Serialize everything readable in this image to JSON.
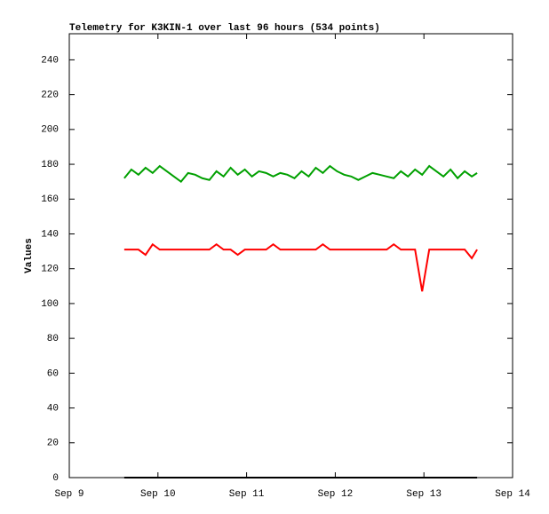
{
  "chart_data": {
    "type": "line",
    "title": "Telemetry for K3KIN-1 over last 96 hours (534 points)",
    "y_label": "Values",
    "x": [
      9.62,
      9.7,
      9.78,
      9.86,
      9.94,
      10.02,
      10.1,
      10.18,
      10.26,
      10.34,
      10.42,
      10.5,
      10.58,
      10.66,
      10.74,
      10.82,
      10.9,
      10.98,
      11.06,
      11.14,
      11.22,
      11.3,
      11.38,
      11.46,
      11.54,
      11.62,
      11.7,
      11.78,
      11.86,
      11.94,
      12.02,
      12.1,
      12.18,
      12.26,
      12.34,
      12.42,
      12.5,
      12.58,
      12.66,
      12.74,
      12.82,
      12.9,
      12.98,
      13.06,
      13.14,
      13.22,
      13.3,
      13.38,
      13.46,
      13.54,
      13.6
    ],
    "series": [
      {
        "color": "#00a000",
        "values": [
          172,
          177,
          174,
          178,
          175,
          179,
          176,
          173,
          170,
          175,
          174,
          172,
          171,
          176,
          173,
          178,
          174,
          177,
          173,
          176,
          175,
          173,
          175,
          174,
          172,
          176,
          173,
          178,
          175,
          179,
          176,
          174,
          173,
          171,
          173,
          175,
          174,
          173,
          172,
          176,
          173,
          177,
          174,
          179,
          176,
          173,
          177,
          172,
          176,
          173,
          175
        ]
      },
      {
        "color": "#ff0000",
        "values": [
          131,
          131,
          131,
          128,
          134,
          131,
          131,
          131,
          131,
          131,
          131,
          131,
          131,
          134,
          131,
          131,
          128,
          131,
          131,
          131,
          131,
          134,
          131,
          131,
          131,
          131,
          131,
          131,
          134,
          131,
          131,
          131,
          131,
          131,
          131,
          131,
          131,
          131,
          134,
          131,
          131,
          131,
          107,
          131,
          131,
          131,
          131,
          131,
          131,
          126,
          131
        ]
      },
      {
        "color": "#000000",
        "values": [
          0,
          0,
          0,
          0,
          0,
          0,
          0,
          0,
          0,
          0,
          0,
          0,
          0,
          0,
          0,
          0,
          0,
          0,
          0,
          0,
          0,
          0,
          0,
          0,
          0,
          0,
          0,
          0,
          0,
          0,
          0,
          0,
          0,
          0,
          0,
          0,
          0,
          0,
          0,
          0,
          0,
          0,
          0,
          0,
          0,
          0,
          0,
          0,
          0,
          0,
          0
        ]
      }
    ],
    "xlim": [
      9,
      14
    ],
    "xticks": [
      {
        "value": 9,
        "label": "Sep 9"
      },
      {
        "value": 10,
        "label": "Sep 10"
      },
      {
        "value": 11,
        "label": "Sep 11"
      },
      {
        "value": 12,
        "label": "Sep 12"
      },
      {
        "value": 13,
        "label": "Sep 13"
      },
      {
        "value": 14,
        "label": "Sep 14"
      }
    ],
    "ylim": [
      0,
      255
    ],
    "yticks": [
      0,
      20,
      40,
      60,
      80,
      100,
      120,
      140,
      160,
      180,
      200,
      220,
      240
    ]
  }
}
